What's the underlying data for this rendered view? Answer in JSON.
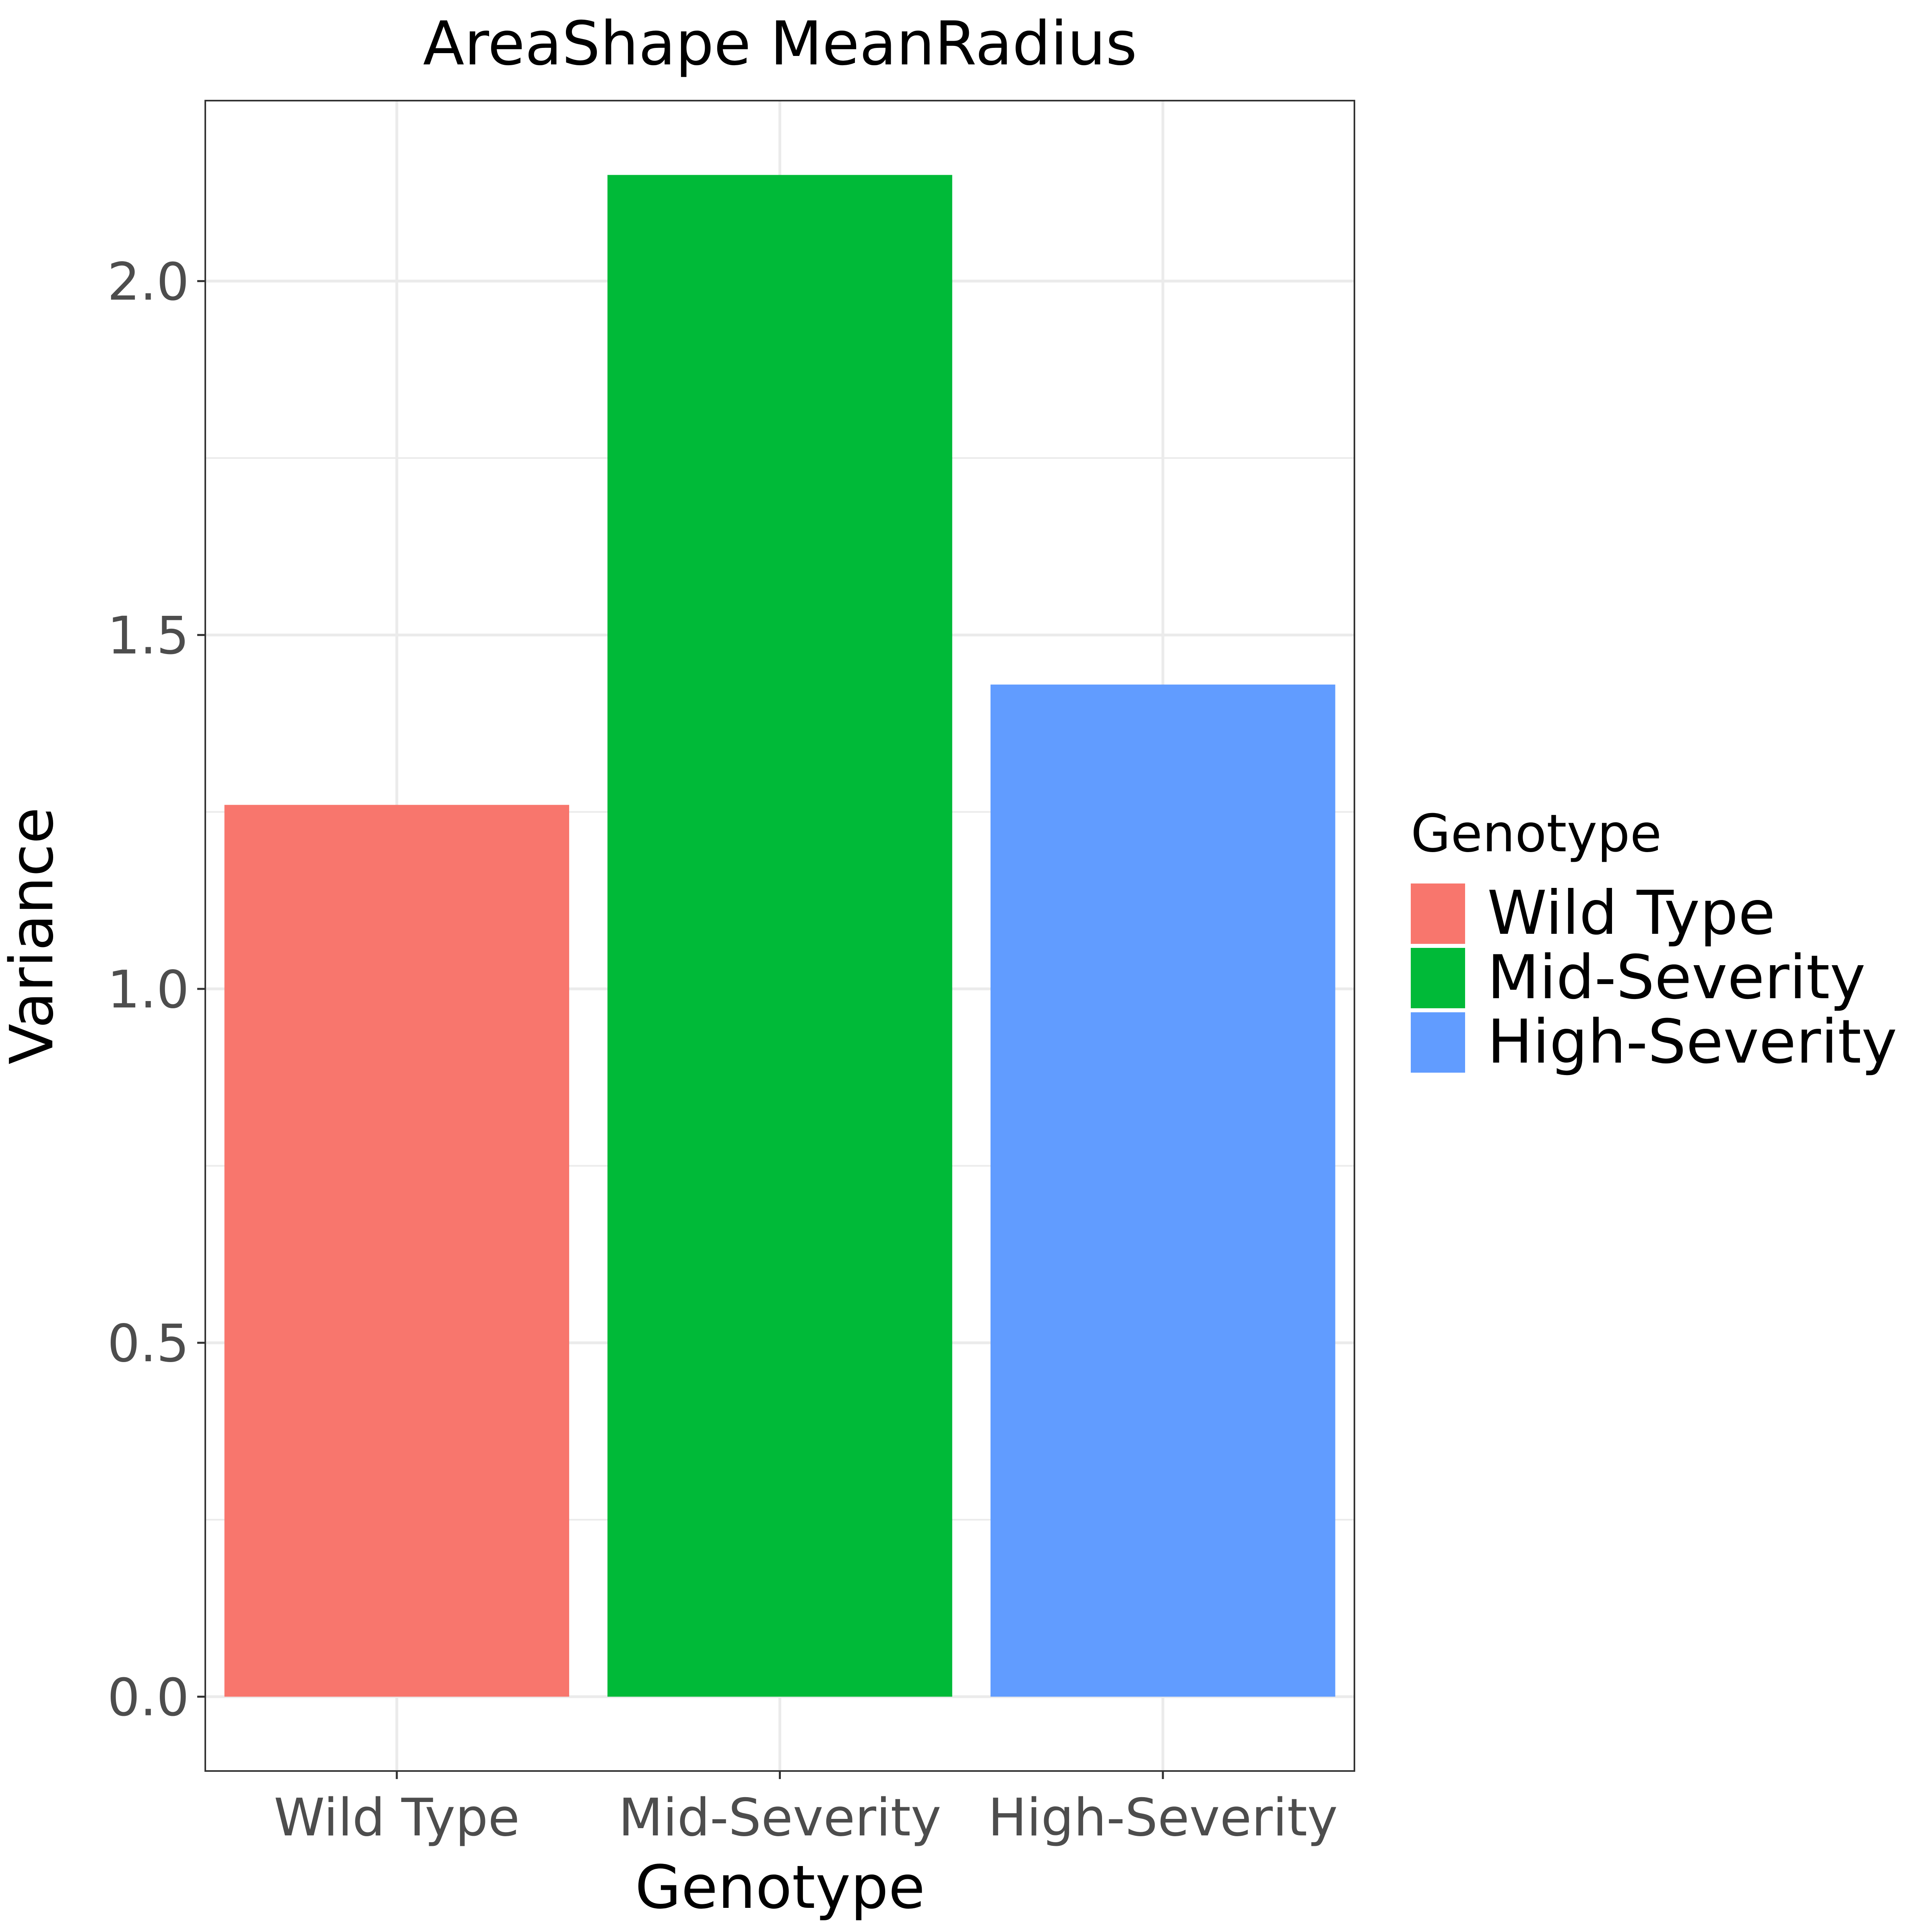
{
  "chart_data": {
    "type": "bar",
    "title": "AreaShape MeanRadius",
    "xlabel": "Genotype",
    "ylabel": "Variance",
    "categories": [
      "Wild Type",
      "Mid-Severity",
      "High-Severity"
    ],
    "values": [
      1.26,
      2.15,
      1.43
    ],
    "colors": [
      "#F8766D",
      "#00BA38",
      "#619CFF"
    ],
    "ylim": [
      -0.105,
      2.255
    ],
    "yticks": [
      0.0,
      0.5,
      1.0,
      1.5,
      2.0
    ],
    "ytick_labels": [
      "0.0",
      "0.5",
      "1.0",
      "1.5",
      "2.0"
    ],
    "grid": true,
    "legend": {
      "title": "Genotype",
      "position": "right",
      "entries": [
        "Wild Type",
        "Mid-Severity",
        "High-Severity"
      ]
    }
  }
}
